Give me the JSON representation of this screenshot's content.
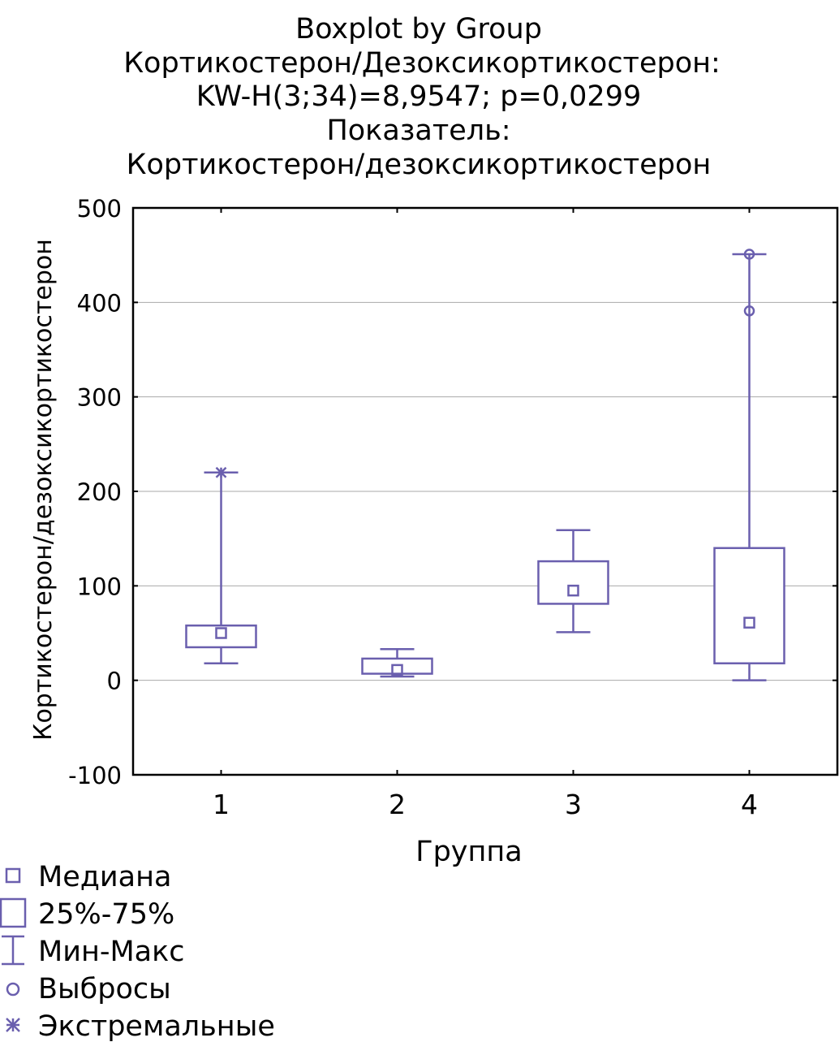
{
  "chart_data": {
    "type": "boxplot",
    "title": [
      "Boxplot by Group",
      "Кортикостерон/Дезоксикортикостерон:",
      "KW-H(3;34)=8,9547; p=0,0299",
      "Показатель:",
      "Кортикостерон/дезоксикортикостерон"
    ],
    "xlabel": "Группа",
    "ylabel": "Кортикостерон/дезоксикортикостерон",
    "ylim": [
      -100,
      500
    ],
    "yticks": [
      -100,
      0,
      100,
      200,
      300,
      400,
      500
    ],
    "grid": true,
    "categories": [
      "1",
      "2",
      "3",
      "4"
    ],
    "boxes": [
      {
        "group": "1",
        "min": 18,
        "q1": 35,
        "median": 50,
        "q3": 58,
        "max": 220,
        "outliers": [],
        "extremes": [
          220
        ]
      },
      {
        "group": "2",
        "min": 4,
        "q1": 7,
        "median": 11,
        "q3": 23,
        "max": 33,
        "outliers": [],
        "extremes": []
      },
      {
        "group": "3",
        "min": 51,
        "q1": 81,
        "median": 95,
        "q3": 126,
        "max": 159,
        "outliers": [],
        "extremes": []
      },
      {
        "group": "4",
        "min": 0,
        "q1": 18,
        "median": 61,
        "q3": 140,
        "max": 451,
        "outliers": [
          391,
          451
        ],
        "extremes": []
      }
    ],
    "color": "#6a5fae",
    "legend": {
      "placement": "bottom-left",
      "items": [
        {
          "symbol": "median",
          "label": "Медиана"
        },
        {
          "symbol": "box",
          "label": "25%-75%"
        },
        {
          "symbol": "whisker",
          "label": "Мин-Макс"
        },
        {
          "symbol": "outlier",
          "label": "Выбросы"
        },
        {
          "symbol": "extreme",
          "label": "Экстремальные"
        }
      ]
    }
  }
}
